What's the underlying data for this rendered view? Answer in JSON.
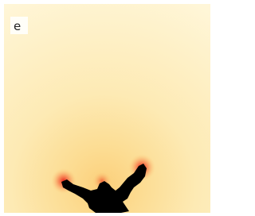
{
  "panel_label": "e"
}
